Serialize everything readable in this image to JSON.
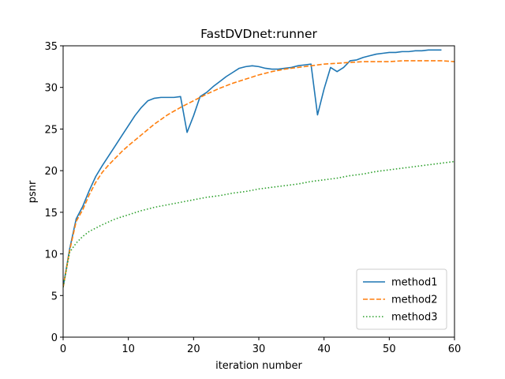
{
  "chart_data": {
    "type": "line",
    "title": "FastDVDnet:runner",
    "xlabel": "iteration number",
    "ylabel": "psnr",
    "xlim": [
      0,
      60
    ],
    "ylim": [
      0,
      35
    ],
    "xticks": [
      0,
      10,
      20,
      30,
      40,
      50,
      60
    ],
    "yticks": [
      0,
      5,
      10,
      15,
      20,
      25,
      30,
      35
    ],
    "grid": false,
    "legend_position": "lower-right",
    "series": [
      {
        "name": "method1",
        "color": "#1f77b4",
        "style": "solid",
        "x": [
          0,
          1,
          2,
          3,
          4,
          5,
          6,
          7,
          8,
          9,
          10,
          11,
          12,
          13,
          14,
          15,
          16,
          17,
          18,
          19,
          20,
          21,
          22,
          23,
          24,
          25,
          26,
          27,
          28,
          29,
          30,
          31,
          32,
          33,
          34,
          35,
          36,
          37,
          38,
          39,
          40,
          41,
          42,
          43,
          44,
          45,
          46,
          47,
          48,
          49,
          50,
          51,
          52,
          53,
          54,
          55,
          56,
          57,
          58
        ],
        "y": [
          6.0,
          10.6,
          14.2,
          15.7,
          17.6,
          19.3,
          20.6,
          21.8,
          23.0,
          24.2,
          25.4,
          26.6,
          27.6,
          28.4,
          28.7,
          28.8,
          28.8,
          28.8,
          28.9,
          24.6,
          26.6,
          28.9,
          29.4,
          30.1,
          30.7,
          31.3,
          31.8,
          32.3,
          32.5,
          32.6,
          32.5,
          32.3,
          32.2,
          32.2,
          32.3,
          32.4,
          32.6,
          32.7,
          32.8,
          26.7,
          29.8,
          32.4,
          31.9,
          32.4,
          33.2,
          33.3,
          33.6,
          33.8,
          34.0,
          34.1,
          34.2,
          34.2,
          34.3,
          34.3,
          34.4,
          34.4,
          34.5,
          34.5,
          34.5
        ]
      },
      {
        "name": "method2",
        "color": "#ff7f0e",
        "style": "dashed",
        "x": [
          0,
          1,
          2,
          3,
          4,
          5,
          6,
          7,
          8,
          9,
          10,
          12,
          14,
          16,
          18,
          20,
          22,
          24,
          26,
          28,
          30,
          32,
          34,
          36,
          38,
          40,
          42,
          44,
          46,
          48,
          50,
          52,
          54,
          56,
          58,
          60
        ],
        "y": [
          6.0,
          10.4,
          13.9,
          15.3,
          17.1,
          18.6,
          19.8,
          20.7,
          21.5,
          22.3,
          23.0,
          24.3,
          25.6,
          26.7,
          27.6,
          28.4,
          29.2,
          29.9,
          30.5,
          31.0,
          31.5,
          31.9,
          32.2,
          32.4,
          32.6,
          32.8,
          32.9,
          33.0,
          33.1,
          33.1,
          33.1,
          33.2,
          33.2,
          33.2,
          33.2,
          33.1
        ]
      },
      {
        "name": "method3",
        "color": "#2ca02c",
        "style": "dotted",
        "x": [
          0,
          1,
          2,
          3,
          4,
          5,
          6,
          8,
          10,
          12,
          14,
          16,
          18,
          20,
          22,
          24,
          26,
          28,
          30,
          32,
          34,
          36,
          38,
          40,
          42,
          44,
          46,
          48,
          50,
          52,
          54,
          56,
          58,
          60
        ],
        "y": [
          6.0,
          10.2,
          11.3,
          12.1,
          12.7,
          13.1,
          13.5,
          14.2,
          14.7,
          15.2,
          15.6,
          15.9,
          16.2,
          16.5,
          16.8,
          17.0,
          17.3,
          17.5,
          17.8,
          18.0,
          18.2,
          18.4,
          18.7,
          18.9,
          19.1,
          19.4,
          19.6,
          19.9,
          20.1,
          20.3,
          20.5,
          20.7,
          20.9,
          21.1
        ]
      }
    ]
  }
}
